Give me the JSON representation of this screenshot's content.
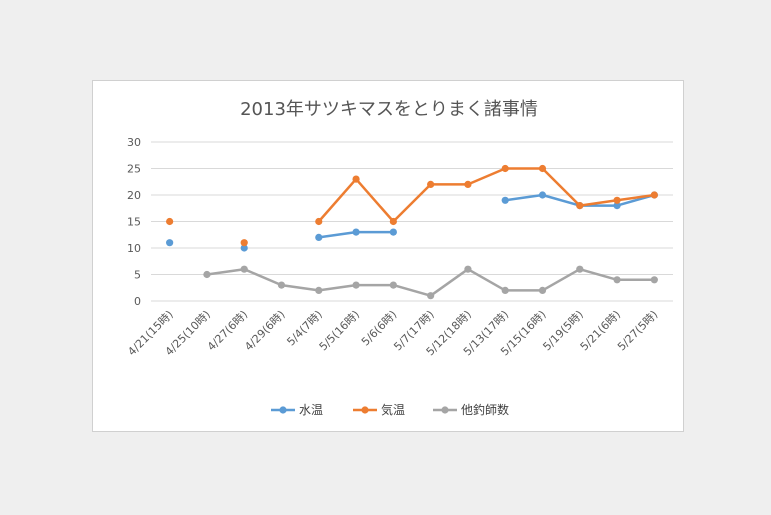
{
  "chart_data": {
    "type": "line",
    "title": "2013年サツキマスをとりまく諸事情",
    "categories": [
      "4/21(15時)",
      "4/25(10時)",
      "4/27(6時)",
      "4/29(6時)",
      "5/4(7時)",
      "5/5(16時)",
      "5/6(6時)",
      "5/7(17時)",
      "5/12(18時)",
      "5/13(17時)",
      "5/15(16時)",
      "5/19(5時)",
      "5/21(6時)",
      "5/27(5時)"
    ],
    "ylim": [
      0,
      30
    ],
    "yticks": [
      0,
      5,
      10,
      15,
      20,
      25,
      30
    ],
    "grid": true,
    "legend": "bottom",
    "series": [
      {
        "name": "水温",
        "color": "#5b9bd5",
        "values": [
          11,
          null,
          10,
          null,
          12,
          13,
          13,
          null,
          null,
          19,
          20,
          18,
          18,
          20
        ]
      },
      {
        "name": "気温",
        "color": "#ed7d31",
        "values": [
          15,
          null,
          11,
          null,
          15,
          23,
          15,
          22,
          22,
          25,
          25,
          18,
          19,
          20
        ]
      },
      {
        "name": "他釣師数",
        "color": "#a5a5a5",
        "values": [
          null,
          5,
          6,
          3,
          2,
          3,
          3,
          1,
          6,
          2,
          2,
          6,
          4,
          4
        ]
      }
    ]
  }
}
